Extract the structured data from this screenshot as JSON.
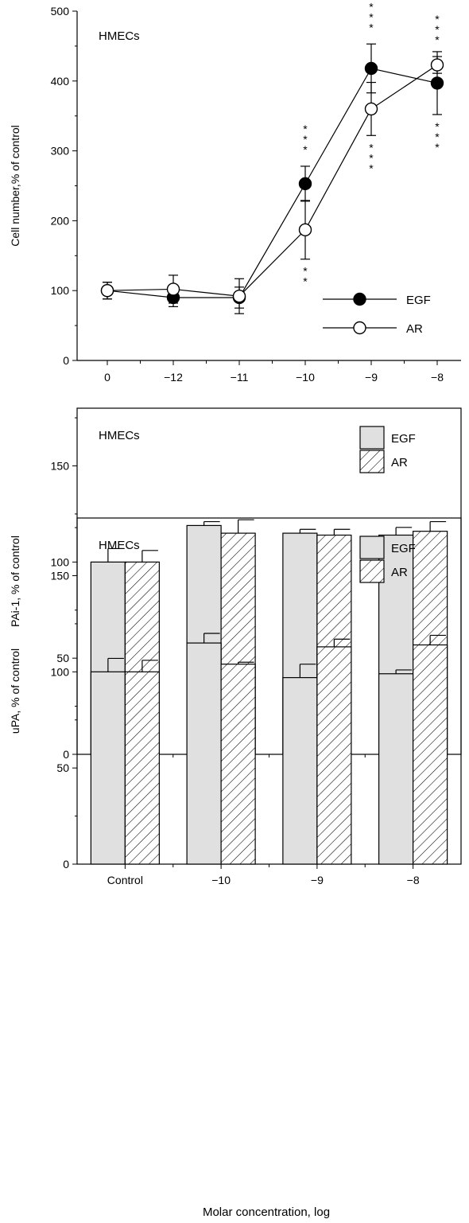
{
  "figure": {
    "shared_xlabel": "Molar concentration, log",
    "colors": {
      "ink": "#000000",
      "bar_fill": "#e0e0e0",
      "marker_open": "#ffffff"
    }
  },
  "chart_data": [
    {
      "id": "panel-a",
      "type": "line",
      "title": "HMECs",
      "xlabel": "",
      "ylabel": "Cell number,% of control",
      "categories": [
        "0",
        "−12",
        "−11",
        "−10",
        "−9",
        "−8"
      ],
      "ylim": [
        0,
        500
      ],
      "yticks": [
        0,
        100,
        200,
        300,
        400,
        500
      ],
      "legend": "bottom-right",
      "grid": false,
      "series": [
        {
          "name": "EGF",
          "marker": "filled-circle",
          "values": [
            100,
            90,
            90,
            253,
            418,
            397
          ],
          "errors": [
            12,
            13,
            15,
            25,
            35,
            45
          ]
        },
        {
          "name": "AR",
          "marker": "open-circle",
          "values": [
            100,
            102,
            92,
            187,
            360,
            423
          ],
          "errors": [
            12,
            20,
            25,
            42,
            38,
            12
          ]
        }
      ],
      "annotations": [
        {
          "text": "* * *",
          "category": "−10",
          "position": "above",
          "series": "EGF"
        },
        {
          "text": "* *",
          "category": "−10",
          "position": "below",
          "series": "AR"
        },
        {
          "text": "* * *",
          "category": "−9",
          "position": "above",
          "series": "EGF"
        },
        {
          "text": "* * *",
          "category": "−9",
          "position": "below",
          "series": "AR"
        },
        {
          "text": "* * *",
          "category": "−8",
          "position": "above",
          "series": "AR"
        },
        {
          "text": "* * *",
          "category": "−8",
          "position": "below",
          "series": "EGF"
        }
      ]
    },
    {
      "id": "panel-b",
      "type": "bar",
      "title": "HMECs",
      "xlabel": "",
      "ylabel": "PAi-1, % of control",
      "categories": [
        "Control",
        "−10",
        "−9",
        "−8"
      ],
      "ylim": [
        0,
        180
      ],
      "yticks": [
        0,
        50,
        100,
        150
      ],
      "legend": "top-right",
      "grid": false,
      "series": [
        {
          "name": "EGF",
          "pattern": "solid-gray",
          "values": [
            100,
            119,
            115,
            114
          ],
          "errors": [
            7,
            2,
            2,
            4
          ]
        },
        {
          "name": "AR",
          "pattern": "hatched",
          "values": [
            100,
            115,
            114,
            116
          ],
          "errors": [
            6,
            7,
            3,
            5
          ]
        }
      ]
    },
    {
      "id": "panel-c",
      "type": "bar",
      "title": "HMECs",
      "xlabel": "Molar concentration, log",
      "ylabel": "uPA, % of control",
      "categories": [
        "Control",
        "−10",
        "−9",
        "−8"
      ],
      "ylim": [
        0,
        180
      ],
      "yticks": [
        0,
        50,
        100,
        150
      ],
      "legend": "top-right",
      "grid": false,
      "series": [
        {
          "name": "EGF",
          "pattern": "solid-gray",
          "values": [
            100,
            115,
            97,
            99
          ],
          "errors": [
            7,
            5,
            7,
            2
          ]
        },
        {
          "name": "AR",
          "pattern": "hatched",
          "values": [
            100,
            104,
            113,
            114
          ],
          "errors": [
            6,
            1,
            4,
            5
          ]
        }
      ]
    }
  ]
}
